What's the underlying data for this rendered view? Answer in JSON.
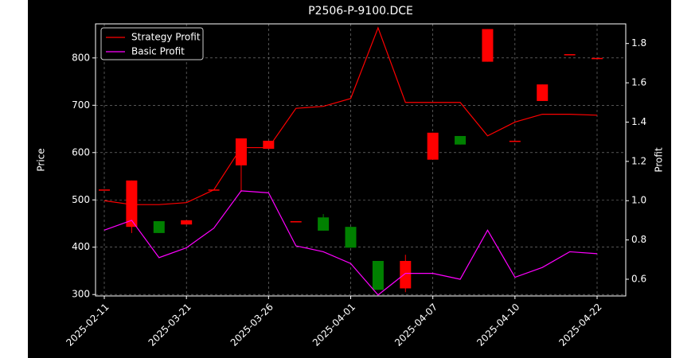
{
  "chart_data": {
    "type": "candlestick",
    "title": "P2506-P-9100.DCE",
    "y_label": "Price",
    "y2_label": "Profit",
    "categories": [
      "2025-02-11",
      null,
      null,
      "2025-03-21",
      null,
      null,
      "2025-03-26",
      null,
      null,
      "2025-04-01",
      null,
      null,
      "2025-04-07",
      null,
      null,
      "2025-04-10",
      null,
      null,
      "2025-04-22"
    ],
    "open": [
      522,
      443,
      455,
      448,
      522,
      573,
      608,
      455,
      463,
      443,
      371,
      313,
      585,
      635,
      792,
      625,
      709,
      808,
      800
    ],
    "high": [
      522,
      541,
      455,
      457,
      522,
      630,
      625,
      455,
      470,
      443,
      371,
      384,
      642,
      635,
      861,
      625,
      744,
      808,
      800
    ],
    "low": [
      522,
      430,
      430,
      448,
      522,
      517,
      608,
      455,
      435,
      399,
      310,
      305,
      585,
      617,
      792,
      625,
      709,
      808,
      800
    ],
    "close": [
      522,
      541,
      430,
      457,
      522,
      630,
      625,
      455,
      435,
      399,
      310,
      371,
      642,
      617,
      861,
      625,
      744,
      808,
      800
    ],
    "up_color": "#ff0000",
    "down_color": "#008000",
    "series": [
      {
        "name": "Strategy Profit",
        "color": "#ff0000",
        "axis": "y2",
        "values": [
          1.0,
          0.98,
          0.98,
          0.99,
          1.055,
          1.27,
          1.27,
          1.47,
          1.48,
          1.52,
          1.88,
          1.5,
          1.5,
          1.5,
          1.33,
          1.4,
          1.44,
          1.44,
          1.435
        ]
      },
      {
        "name": "Basic Profit",
        "color": "#ff00ff",
        "axis": "y2",
        "values": [
          0.85,
          0.9,
          0.71,
          0.76,
          0.86,
          1.05,
          1.04,
          0.77,
          0.74,
          0.68,
          0.52,
          0.63,
          0.63,
          0.6,
          0.85,
          0.61,
          0.66,
          0.74,
          0.73
        ]
      }
    ],
    "ylim": [
      297,
      872
    ],
    "yticks": [
      300,
      400,
      500,
      600,
      700,
      800
    ],
    "y2lim": [
      0.515,
      1.9
    ],
    "y2ticks": [
      0.6,
      0.8,
      {
        "value": 1,
        "label": "1.0"
      },
      1.2,
      1.4,
      1.6,
      1.8
    ],
    "grid": true,
    "legend": "upper left"
  }
}
